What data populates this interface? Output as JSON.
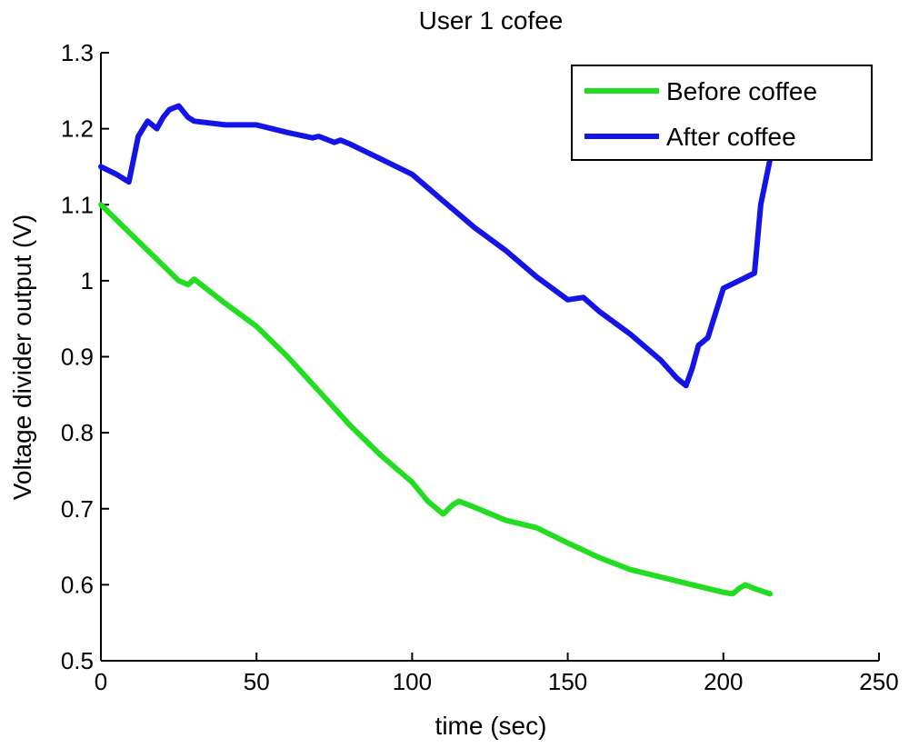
{
  "chart_data": {
    "type": "line",
    "title": "User 1 cofee",
    "xlabel": "time (sec)",
    "ylabel": "Voltage divider output (V)",
    "xlim": [
      0,
      250
    ],
    "ylim": [
      0.5,
      1.3
    ],
    "xticks": [
      0,
      50,
      100,
      150,
      200,
      250
    ],
    "xtick_labels": [
      "0",
      "50",
      "100",
      "150",
      "200",
      "250"
    ],
    "yticks": [
      0.5,
      0.6,
      0.7,
      0.8,
      0.9,
      1.0,
      1.1,
      1.2,
      1.3
    ],
    "ytick_labels": [
      "0.5",
      "0.6",
      "0.7",
      "0.8",
      "0.9",
      "1",
      "1.1",
      "1.2",
      "1.3"
    ],
    "grid": false,
    "legend_position": "top-right",
    "series": [
      {
        "name": "Before coffee",
        "color": "#22dd22",
        "x": [
          0,
          10,
          20,
          25,
          28,
          30,
          40,
          50,
          60,
          70,
          80,
          90,
          100,
          105,
          110,
          113,
          115,
          120,
          130,
          140,
          150,
          160,
          170,
          180,
          190,
          200,
          203,
          205,
          207,
          210,
          215
        ],
        "y": [
          1.1,
          1.06,
          1.02,
          1.0,
          0.995,
          1.002,
          0.97,
          0.94,
          0.9,
          0.855,
          0.81,
          0.77,
          0.735,
          0.71,
          0.693,
          0.705,
          0.71,
          0.702,
          0.685,
          0.675,
          0.655,
          0.636,
          0.62,
          0.61,
          0.6,
          0.59,
          0.588,
          0.595,
          0.6,
          0.595,
          0.588
        ]
      },
      {
        "name": "After coffee",
        "color": "#1414e6",
        "x": [
          0,
          5,
          9,
          12,
          15,
          18,
          20,
          22,
          25,
          28,
          30,
          40,
          50,
          60,
          68,
          70,
          75,
          77,
          80,
          90,
          100,
          110,
          120,
          130,
          140,
          150,
          155,
          160,
          170,
          180,
          185,
          188,
          190,
          192,
          195,
          200,
          205,
          210,
          212,
          215
        ],
        "y": [
          1.15,
          1.14,
          1.13,
          1.19,
          1.21,
          1.2,
          1.215,
          1.225,
          1.23,
          1.215,
          1.21,
          1.205,
          1.205,
          1.195,
          1.188,
          1.19,
          1.182,
          1.185,
          1.18,
          1.16,
          1.14,
          1.105,
          1.07,
          1.04,
          1.005,
          0.975,
          0.978,
          0.96,
          0.93,
          0.895,
          0.872,
          0.862,
          0.885,
          0.915,
          0.925,
          0.99,
          1.0,
          1.01,
          1.1,
          1.16
        ]
      }
    ]
  }
}
